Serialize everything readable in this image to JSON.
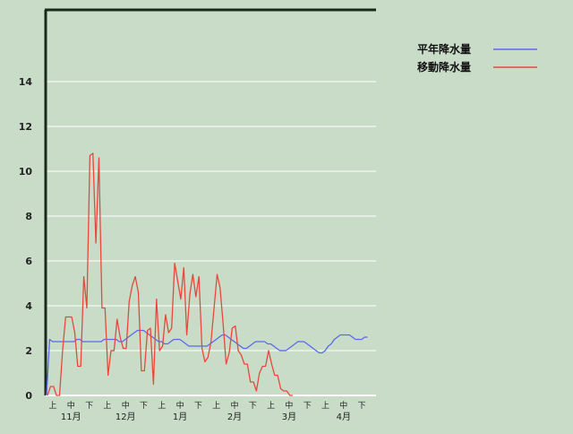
{
  "chart_data": {
    "type": "line",
    "title": "",
    "xlabel": "",
    "ylabel": "",
    "ylim": [
      0,
      16
    ],
    "yticks": [
      0,
      2,
      4,
      6,
      8,
      10,
      12,
      14
    ],
    "grid": true,
    "legend_position": "top-right",
    "x_period_labels": [
      "上",
      "中",
      "下",
      "上",
      "中",
      "下",
      "上",
      "中",
      "下",
      "上",
      "中",
      "下",
      "上",
      "中",
      "下",
      "上",
      "中",
      "下"
    ],
    "x_month_labels": [
      "11月",
      "12月",
      "1月",
      "2月",
      "3月",
      "4月"
    ],
    "series": [
      {
        "name": "平年降水量",
        "color": "#5a6ae8",
        "values": [
          0,
          2.5,
          2.4,
          2.4,
          2.4,
          2.4,
          2.4,
          2.4,
          2.4,
          2.4,
          2.5,
          2.5,
          2.4,
          2.4,
          2.4,
          2.4,
          2.4,
          2.4,
          2.4,
          2.5,
          2.5,
          2.5,
          2.5,
          2.5,
          2.4,
          2.4,
          2.5,
          2.6,
          2.7,
          2.8,
          2.9,
          2.9,
          2.9,
          2.8,
          2.7,
          2.6,
          2.5,
          2.4,
          2.4,
          2.3,
          2.3,
          2.4,
          2.5,
          2.5,
          2.5,
          2.4,
          2.3,
          2.2,
          2.2,
          2.2,
          2.2,
          2.2,
          2.2,
          2.2,
          2.3,
          2.4,
          2.5,
          2.6,
          2.7,
          2.7,
          2.6,
          2.5,
          2.4,
          2.3,
          2.2,
          2.1,
          2.1,
          2.2,
          2.3,
          2.4,
          2.4,
          2.4,
          2.4,
          2.3,
          2.3,
          2.2,
          2.1,
          2.0,
          2.0,
          2.0,
          2.1,
          2.2,
          2.3,
          2.4,
          2.4,
          2.4,
          2.3,
          2.2,
          2.1,
          2.0,
          1.9,
          1.9,
          2.0,
          2.2,
          2.3,
          2.5,
          2.6,
          2.7,
          2.7,
          2.7,
          2.7,
          2.6,
          2.5,
          2.5,
          2.5,
          2.6,
          2.6
        ]
      },
      {
        "name": "移動降水量",
        "color": "#e8483c",
        "values": [
          0.0,
          0.4,
          0.4,
          0.0,
          0.0,
          2.0,
          3.5,
          3.5,
          3.5,
          2.8,
          1.3,
          1.3,
          5.3,
          3.9,
          10.7,
          10.8,
          6.8,
          10.6,
          3.9,
          3.9,
          0.9,
          2.0,
          2.0,
          3.4,
          2.6,
          2.1,
          2.1,
          4.2,
          4.9,
          5.3,
          4.6,
          1.1,
          1.1,
          2.9,
          3.0,
          0.5,
          4.3,
          2.0,
          2.2,
          3.6,
          2.8,
          3.0,
          5.9,
          5.1,
          4.3,
          5.7,
          2.7,
          4.5,
          5.4,
          4.4,
          5.3,
          2.1,
          1.5,
          1.7,
          2.4,
          3.9,
          5.4,
          4.8,
          3.2,
          1.4,
          1.9,
          3.0,
          3.1,
          2.0,
          1.8,
          1.4,
          1.4,
          0.6,
          0.6,
          0.2,
          1.0,
          1.3,
          1.3,
          2.0,
          1.4,
          0.9,
          0.9,
          0.3,
          0.2,
          0.2,
          0.0,
          0.0
        ]
      }
    ]
  }
}
